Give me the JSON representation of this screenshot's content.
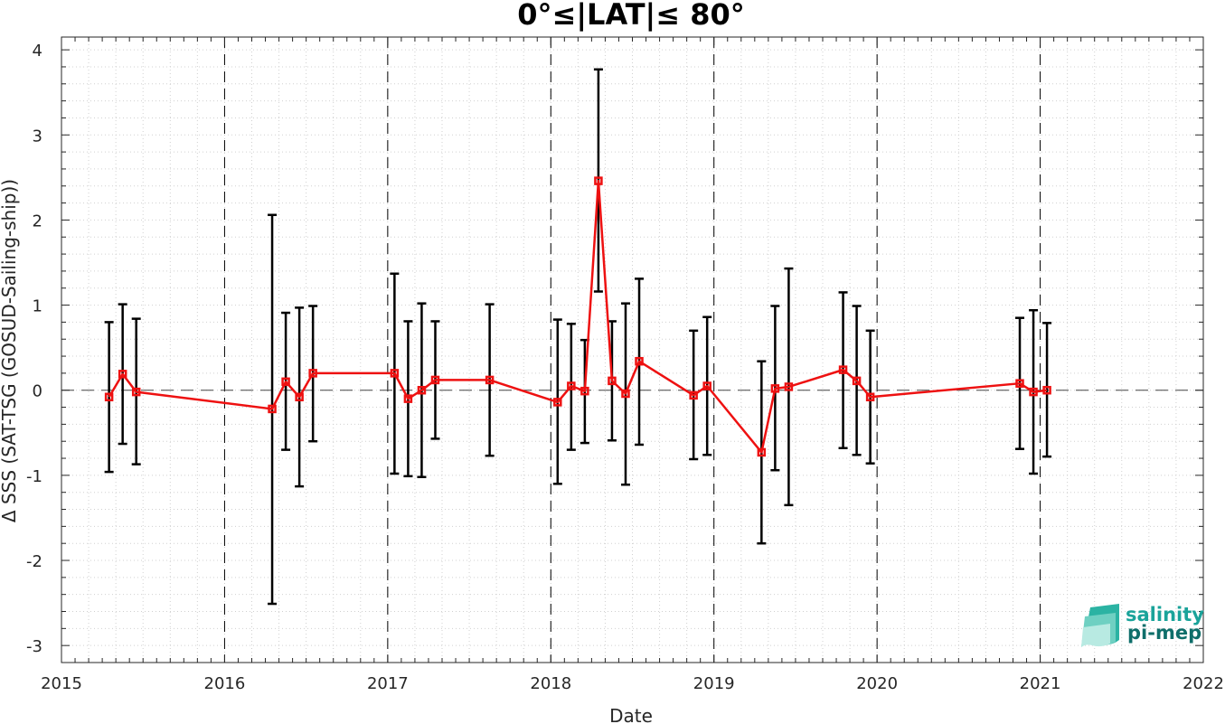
{
  "chart_data": {
    "type": "line",
    "title": "0°≤|LAT|≤ 80°",
    "xlabel": "Date",
    "ylabel": "Δ SSS (SAT-TSG (GOSUD-Sailing-ship))",
    "xlim": [
      2015,
      2022
    ],
    "ylim": [
      -3.2,
      4.15
    ],
    "x_ticks": [
      "2015",
      "2016",
      "2017",
      "2018",
      "2019",
      "2020",
      "2021",
      "2022"
    ],
    "y_ticks": [
      "4",
      "3",
      "2",
      "1",
      "0",
      "-1",
      "-2",
      "-3"
    ],
    "grid": "minor dotted",
    "year_separators": "dashed vertical lines",
    "zero_reference": "dashed horizontal line at 0",
    "series": [
      {
        "color": "#ee1111",
        "marker": "square",
        "errorbar_color": "#000000",
        "points": [
          {
            "x": "2015-04",
            "y": -0.08,
            "lo": -0.96,
            "hi": 0.8
          },
          {
            "x": "2015-05",
            "y": 0.19,
            "lo": -0.63,
            "hi": 1.01
          },
          {
            "x": "2015-06",
            "y": -0.02,
            "lo": -0.87,
            "hi": 0.84
          },
          {
            "x": "2016-04",
            "y": -0.22,
            "lo": -2.51,
            "hi": 2.06
          },
          {
            "x": "2016-05",
            "y": 0.1,
            "lo": -0.7,
            "hi": 0.91
          },
          {
            "x": "2016-06",
            "y": -0.08,
            "lo": -1.13,
            "hi": 0.97
          },
          {
            "x": "2016-07",
            "y": 0.2,
            "lo": -0.6,
            "hi": 0.99
          },
          {
            "x": "2017-01",
            "y": 0.2,
            "lo": -0.98,
            "hi": 1.37
          },
          {
            "x": "2017-02",
            "y": -0.1,
            "lo": -1.01,
            "hi": 0.81
          },
          {
            "x": "2017-03",
            "y": 0.0,
            "lo": -1.02,
            "hi": 1.02
          },
          {
            "x": "2017-04",
            "y": 0.12,
            "lo": -0.57,
            "hi": 0.81
          },
          {
            "x": "2017-08",
            "y": 0.12,
            "lo": -0.77,
            "hi": 1.01
          },
          {
            "x": "2018-01",
            "y": -0.14,
            "lo": -1.1,
            "hi": 0.83
          },
          {
            "x": "2018-02",
            "y": 0.05,
            "lo": -0.7,
            "hi": 0.78
          },
          {
            "x": "2018-03",
            "y": -0.01,
            "lo": -0.62,
            "hi": 0.59
          },
          {
            "x": "2018-04",
            "y": 2.46,
            "lo": 1.16,
            "hi": 3.77
          },
          {
            "x": "2018-05",
            "y": 0.11,
            "lo": -0.59,
            "hi": 0.81
          },
          {
            "x": "2018-06",
            "y": -0.04,
            "lo": -1.11,
            "hi": 1.02
          },
          {
            "x": "2018-07",
            "y": 0.34,
            "lo": -0.64,
            "hi": 1.31
          },
          {
            "x": "2018-11",
            "y": -0.06,
            "lo": -0.81,
            "hi": 0.7
          },
          {
            "x": "2018-12",
            "y": 0.05,
            "lo": -0.76,
            "hi": 0.86
          },
          {
            "x": "2019-04",
            "y": -0.73,
            "lo": -1.8,
            "hi": 0.34
          },
          {
            "x": "2019-05",
            "y": 0.02,
            "lo": -0.94,
            "hi": 0.99
          },
          {
            "x": "2019-06",
            "y": 0.04,
            "lo": -1.35,
            "hi": 1.43
          },
          {
            "x": "2019-10",
            "y": 0.24,
            "lo": -0.68,
            "hi": 1.15
          },
          {
            "x": "2019-11",
            "y": 0.11,
            "lo": -0.76,
            "hi": 0.99
          },
          {
            "x": "2019-12",
            "y": -0.08,
            "lo": -0.86,
            "hi": 0.7
          },
          {
            "x": "2020-11",
            "y": 0.08,
            "lo": -0.69,
            "hi": 0.85
          },
          {
            "x": "2020-12",
            "y": -0.02,
            "lo": -0.98,
            "hi": 0.94
          },
          {
            "x": "2021-01",
            "y": 0.0,
            "lo": -0.78,
            "hi": 0.79
          }
        ]
      }
    ]
  },
  "logo": {
    "line1": "salinity",
    "line2": "pi-mep",
    "color1": "#1aa39a",
    "color2": "#0e6e6a"
  }
}
